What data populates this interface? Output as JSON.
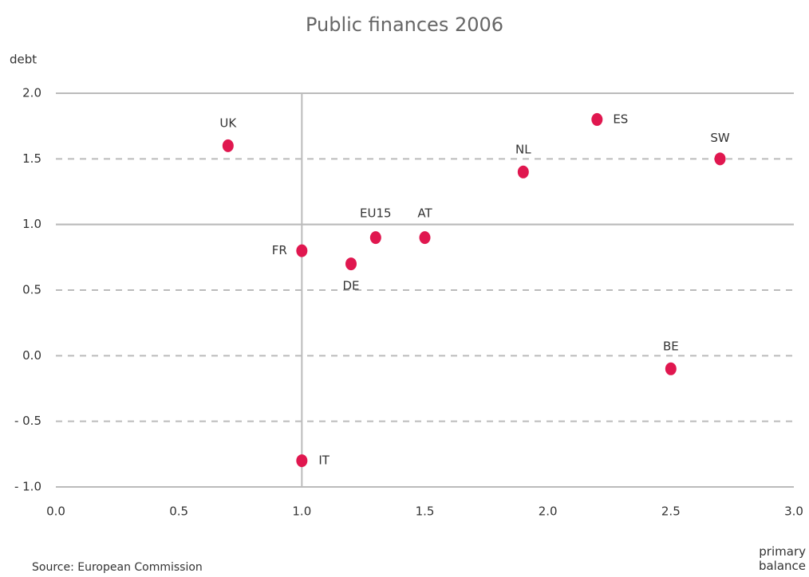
{
  "chart_data": {
    "type": "scatter",
    "title": "Public finances 2006",
    "x_label": "primary balance",
    "y_label": "debt",
    "source": "Source: European Commission",
    "color": "#e0174f",
    "series": [
      {
        "names": [
          "UK",
          "FR",
          "DE",
          "EU15",
          "AT",
          "NL",
          "ES",
          "SW",
          "BE",
          "IT"
        ],
        "x": [
          0.7,
          1.0,
          1.2,
          1.3,
          1.5,
          1.9,
          2.2,
          2.7,
          2.5,
          1.0
        ],
        "values": [
          1.6,
          0.8,
          0.7,
          0.9,
          0.9,
          1.4,
          1.8,
          1.5,
          -0.1,
          -0.8
        ]
      }
    ],
    "xlim": [
      0,
      3
    ],
    "ylim": [
      -1,
      2
    ],
    "xticks": [
      {
        "value": 0,
        "label": "0.0"
      },
      {
        "value": 0.5,
        "label": "0.5"
      },
      {
        "value": 1,
        "label": "1.0"
      },
      {
        "value": 1.5,
        "label": "1.5"
      },
      {
        "value": 2,
        "label": "2.0"
      },
      {
        "value": 2.5,
        "label": "2.5"
      },
      {
        "value": 3,
        "label": "3.0"
      }
    ],
    "yticks": [
      {
        "value": 2,
        "label": "2.0"
      },
      {
        "value": 1.5,
        "label": "1.5"
      },
      {
        "value": 1,
        "label": "1.0"
      },
      {
        "value": 0.5,
        "label": "0.5"
      },
      {
        "value": 0,
        "label": "0.0"
      },
      {
        "value": -0.5,
        "label": "- 0.5"
      },
      {
        "value": -1,
        "label": "- 1.0"
      }
    ],
    "reference_lines": {
      "x": 1,
      "y": 1
    },
    "grid": true
  }
}
